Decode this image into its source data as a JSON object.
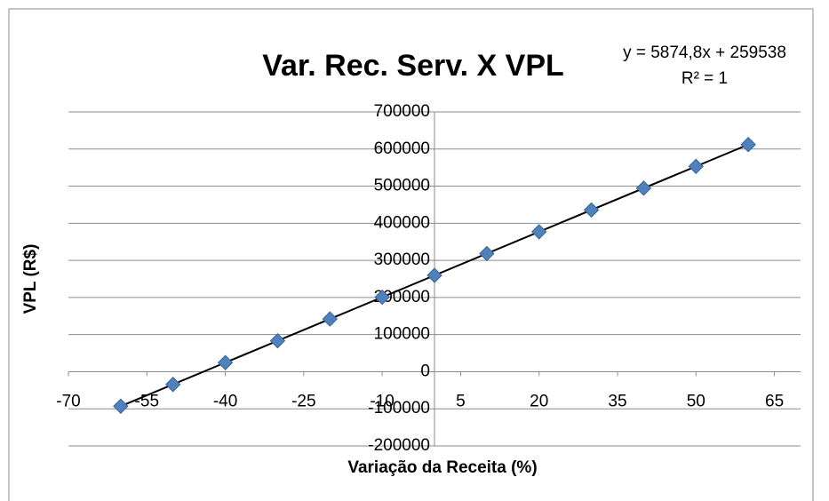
{
  "chart_data": {
    "type": "scatter",
    "title": "Var. Rec. Serv. X VPL",
    "x_label": "Variação da Receita (%)",
    "y_label": "VPL (R$)",
    "x": [
      -60,
      -50,
      -40,
      -30,
      -20,
      -10,
      0,
      10,
      20,
      30,
      40,
      50,
      60
    ],
    "series": [
      {
        "name": "VPL",
        "color": "#4f81bd",
        "values": [
          -92950,
          -34202,
          24546,
          83294,
          142042,
          200790,
          259538,
          318286,
          377034,
          435782,
          494530,
          553278,
          612026
        ]
      }
    ],
    "trendline": {
      "slope": 5874.8,
      "intercept": 259538,
      "color": "#000000",
      "equation": "y = 5874,8x + 259538",
      "r2": "R² = 1"
    },
    "xlim": [
      -70,
      70
    ],
    "xticks": [
      -70,
      -55,
      -40,
      -25,
      -10,
      5,
      20,
      35,
      50,
      65
    ],
    "ylim": [
      -200000,
      700000
    ],
    "yticks": [
      -200000,
      -100000,
      0,
      100000,
      200000,
      300000,
      400000,
      500000,
      600000,
      700000
    ],
    "grid": true
  }
}
